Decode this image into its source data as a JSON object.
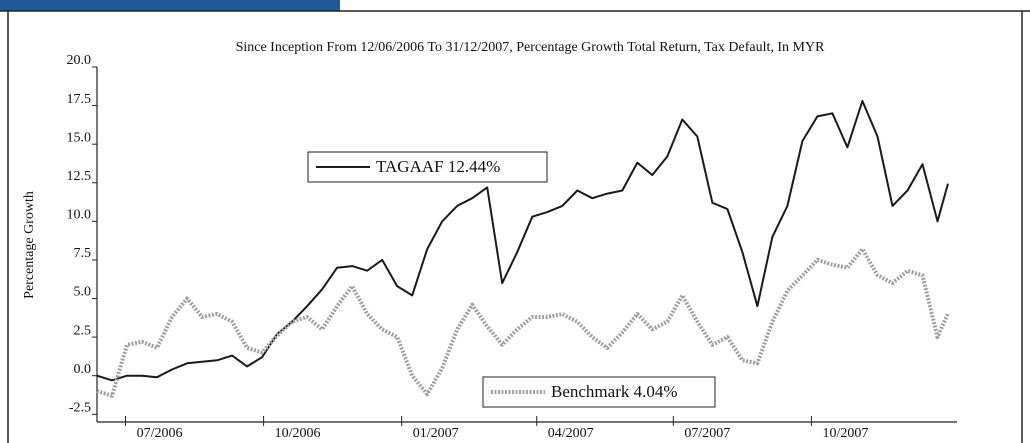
{
  "chart_data": {
    "type": "line",
    "title": "Since Inception From 12/06/2006 To 31/12/2007,  Percentage Growth Total Return, Tax Default, In MYR",
    "y_label": "Percentage Growth",
    "x": [
      "2006-06-12",
      "2006-06-22",
      "2006-07-02",
      "2006-07-12",
      "2006-07-22",
      "2006-08-01",
      "2006-08-11",
      "2006-08-21",
      "2006-08-31",
      "2006-09-10",
      "2006-09-20",
      "2006-09-30",
      "2006-10-10",
      "2006-10-20",
      "2006-10-30",
      "2006-11-09",
      "2006-11-19",
      "2006-11-29",
      "2006-12-09",
      "2006-12-19",
      "2006-12-29",
      "2007-01-08",
      "2007-01-18",
      "2007-01-28",
      "2007-02-07",
      "2007-02-17",
      "2007-02-27",
      "2007-03-09",
      "2007-03-19",
      "2007-03-29",
      "2007-04-08",
      "2007-04-18",
      "2007-04-28",
      "2007-05-08",
      "2007-05-18",
      "2007-05-28",
      "2007-06-07",
      "2007-06-17",
      "2007-06-27",
      "2007-07-07",
      "2007-07-17",
      "2007-07-27",
      "2007-08-06",
      "2007-08-16",
      "2007-08-26",
      "2007-09-05",
      "2007-09-15",
      "2007-09-25",
      "2007-10-05",
      "2007-10-15",
      "2007-10-25",
      "2007-11-04",
      "2007-11-14",
      "2007-11-24",
      "2007-12-04",
      "2007-12-14",
      "2007-12-24",
      "2007-12-31"
    ],
    "series": [
      {
        "name": "TAGAAF 12.44%",
        "color": "#1a1a1a",
        "dash": false,
        "values": [
          0.0,
          -0.3,
          0.0,
          0.0,
          -0.1,
          0.4,
          0.8,
          0.9,
          1.0,
          1.3,
          0.6,
          1.2,
          2.7,
          3.5,
          4.5,
          5.6,
          7.0,
          7.1,
          6.8,
          7.5,
          5.8,
          5.2,
          8.2,
          10.0,
          11.0,
          11.5,
          12.2,
          6.0,
          8.0,
          10.3,
          10.6,
          11.0,
          12.0,
          11.5,
          11.8,
          12.0,
          13.8,
          13.0,
          14.2,
          16.6,
          15.5,
          11.2,
          10.8,
          8.0,
          4.5,
          9.0,
          11.0,
          15.2,
          16.8,
          17.0,
          14.8,
          17.8,
          15.5,
          11.0,
          12.0,
          13.7,
          10.0,
          12.44
        ]
      },
      {
        "name": "Benchmark 4.04%",
        "color": "#a0a0a0",
        "dash": true,
        "values": [
          -1.0,
          -1.3,
          2.0,
          2.2,
          1.8,
          3.8,
          5.0,
          3.8,
          4.0,
          3.5,
          1.8,
          1.5,
          2.6,
          3.5,
          3.8,
          3.0,
          4.5,
          5.8,
          4.0,
          3.0,
          2.5,
          0.0,
          -1.2,
          0.5,
          3.0,
          4.6,
          3.2,
          2.0,
          3.0,
          3.8,
          3.8,
          4.0,
          3.5,
          2.5,
          1.8,
          2.8,
          4.0,
          3.0,
          3.5,
          5.2,
          3.5,
          2.0,
          2.5,
          1.0,
          0.8,
          3.5,
          5.5,
          6.5,
          7.5,
          7.2,
          7.0,
          8.2,
          6.5,
          6.0,
          6.8,
          6.5,
          2.5,
          4.04
        ]
      }
    ],
    "xlim": [
      "2006-06-12",
      "2008-01-06"
    ],
    "xticks": [
      {
        "value": "2006-07-01",
        "label": "07/2006"
      },
      {
        "value": "2006-10-01",
        "label": "10/2006"
      },
      {
        "value": "2007-01-01",
        "label": "01/2007"
      },
      {
        "value": "2007-04-01",
        "label": "04/2007"
      },
      {
        "value": "2007-07-01",
        "label": "07/2007"
      },
      {
        "value": "2007-10-01",
        "label": "10/2007"
      }
    ],
    "ylim": [
      -3,
      20
    ],
    "yticks": [
      {
        "value": -2.5,
        "label": "-2.5"
      },
      {
        "value": 0,
        "label": "0.0"
      },
      {
        "value": 2.5,
        "label": "2.5"
      },
      {
        "value": 5,
        "label": "5.0"
      },
      {
        "value": 7.5,
        "label": "7.5"
      },
      {
        "value": 10,
        "label": "10.0"
      },
      {
        "value": 12.5,
        "label": "12.5"
      },
      {
        "value": 15,
        "label": "15.0"
      },
      {
        "value": 17.5,
        "label": "17.5"
      },
      {
        "value": 20,
        "label": "20.0"
      }
    ],
    "grid": false
  }
}
